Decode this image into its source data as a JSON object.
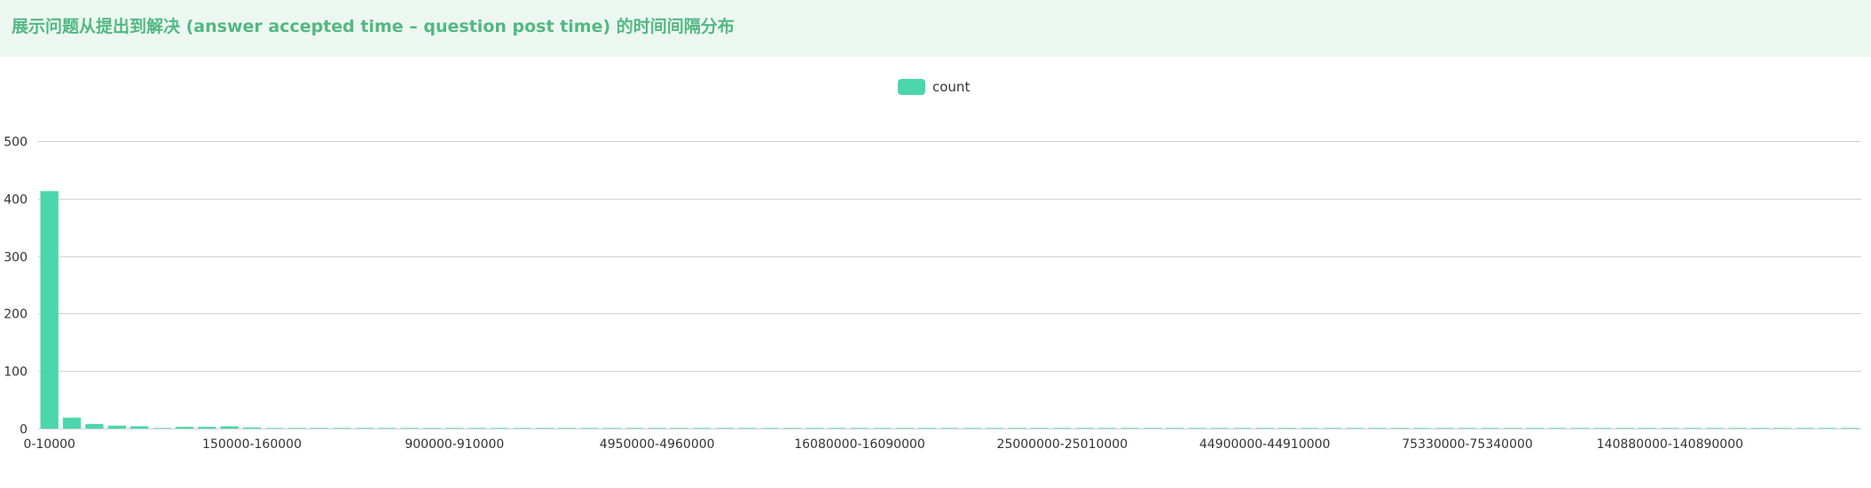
{
  "header": {
    "title": "展示问题从提出到解决 (answer accepted time – question post time) 的时间间隔分布"
  },
  "legend": {
    "label": "count"
  },
  "colors": {
    "bar": "#4cd6ab",
    "grid": "#cfd3d8",
    "header_bg": "#edf7f1",
    "title": "#52b883"
  },
  "chart_data": {
    "type": "bar",
    "title": "展示问题从提出到解决 (answer accepted time – question post time) 的时间间隔分布",
    "xlabel": "",
    "ylabel": "",
    "ylim": [
      0,
      500
    ],
    "yticks": [
      0,
      100,
      200,
      300,
      400,
      500
    ],
    "grid": true,
    "legend_position": "top-center",
    "visible_category_labels": [
      "0-10000",
      "150000-160000",
      "900000-910000",
      "4950000-4960000",
      "16080000-16090000",
      "25000000-25010000",
      "44900000-44910000",
      "75330000-75340000",
      "140880000-140890000"
    ],
    "series": [
      {
        "name": "count",
        "values": [
          413,
          19,
          8,
          5,
          4,
          1,
          3,
          3,
          4,
          2,
          1,
          1,
          1,
          1,
          1,
          1,
          1,
          1,
          1,
          1,
          1,
          1,
          1,
          1,
          1,
          1,
          1,
          1,
          1,
          1,
          1,
          1,
          1,
          1,
          1,
          1,
          1,
          1,
          1,
          1,
          1,
          1,
          1,
          1,
          1,
          1,
          1,
          1,
          1,
          1,
          1,
          1,
          1,
          1,
          1,
          1,
          1,
          1,
          1,
          1,
          1,
          1,
          1,
          1,
          1,
          1,
          1,
          1,
          1,
          1,
          1,
          1,
          1,
          1,
          1,
          1,
          1,
          1,
          1,
          1,
          1
        ]
      }
    ]
  }
}
